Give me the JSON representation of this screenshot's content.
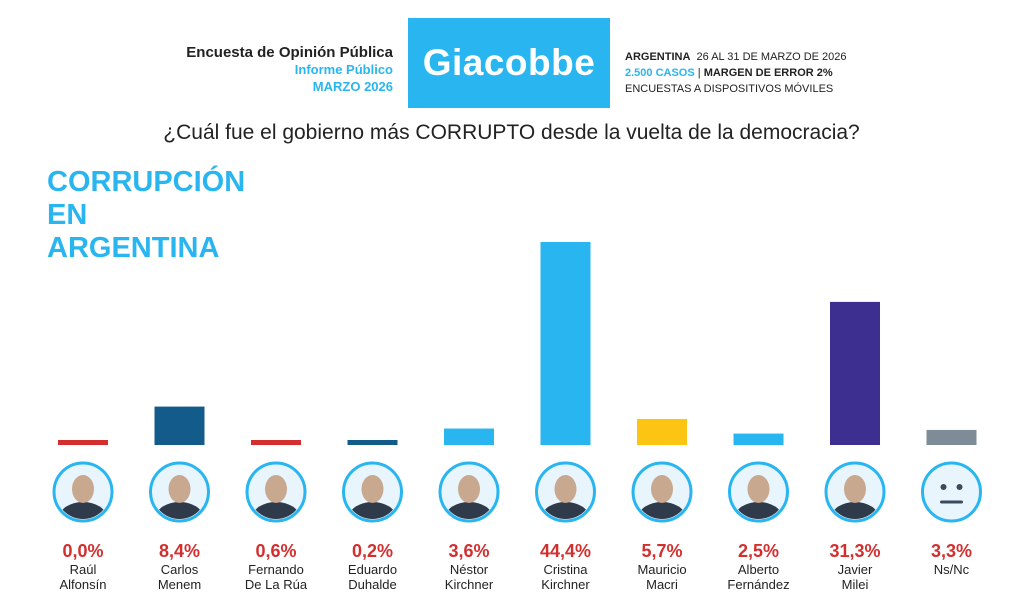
{
  "header": {
    "survey_title": "Encuesta de Opinión Pública",
    "report_type": "Informe Público",
    "period": "MARZO 2026",
    "brand": "Giacobbe",
    "country": "ARGENTINA",
    "dates": "26 AL 31 DE MARZO DE 2026",
    "cases": "2.500 CASOS",
    "separator": "|",
    "margin": "MARGEN DE ERROR 2%",
    "method": "ENCUESTAS A DISPOSITIVOS MÓVILES"
  },
  "headline": [
    "CORRUPCIÓN",
    "EN",
    "ARGENTINA"
  ],
  "chart_data": {
    "type": "bar",
    "title": "¿Cuál fue el gobierno más CORRUPTO desde la vuelta de la democracia?",
    "categories": [
      [
        "Raúl",
        "Alfonsín"
      ],
      [
        "Carlos",
        "Menem"
      ],
      [
        "Fernando",
        "De La Rúa"
      ],
      [
        "Eduardo",
        "Duhalde"
      ],
      [
        "Néstor",
        "Kirchner"
      ],
      [
        "Cristina",
        "Kirchner"
      ],
      [
        "Mauricio",
        "Macri"
      ],
      [
        "Alberto",
        "Fernández"
      ],
      [
        "Javier",
        "Milei"
      ],
      [
        "Ns/Nc"
      ]
    ],
    "values": [
      0.0,
      8.4,
      0.6,
      0.2,
      3.6,
      44.4,
      5.7,
      2.5,
      31.3,
      3.3
    ],
    "labels": [
      "0,0%",
      "8,4%",
      "0,6%",
      "0,2%",
      "3,6%",
      "44,4%",
      "5,7%",
      "2,5%",
      "31,3%",
      "3,3%"
    ],
    "colors": [
      "#d32f2f",
      "#135b8a",
      "#d32f2f",
      "#135b8a",
      "#29b6f0",
      "#29b6f0",
      "#fdc513",
      "#29b6f0",
      "#3d2f8f",
      "#7d8c97"
    ],
    "ylim": [
      0,
      44.4
    ],
    "xlabel": "",
    "ylabel": "",
    "grid": false,
    "legend": "none"
  }
}
